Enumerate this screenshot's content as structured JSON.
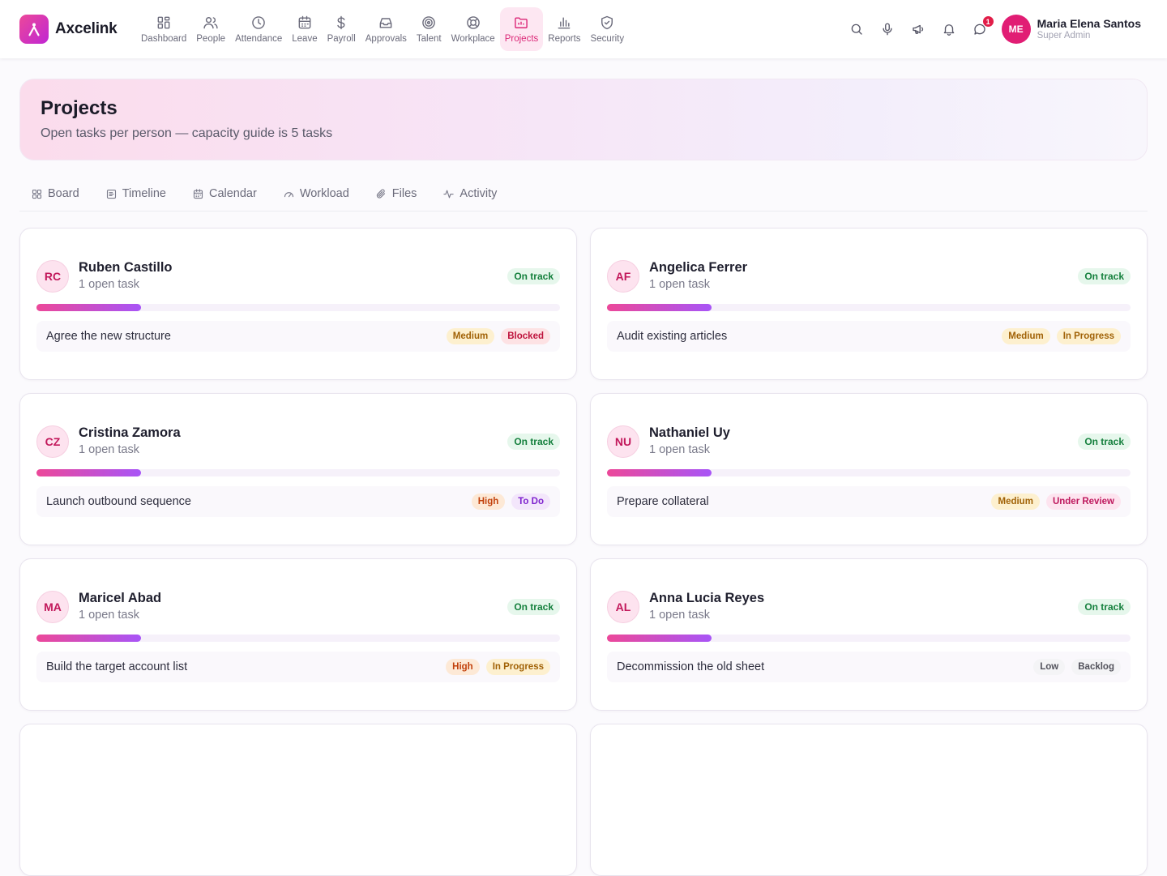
{
  "app": {
    "name": "Axcelink"
  },
  "nav": [
    {
      "label": "Dashboard",
      "icon": "grid-icon",
      "active": false
    },
    {
      "label": "People",
      "icon": "users-icon",
      "active": false
    },
    {
      "label": "Attendance",
      "icon": "clock-icon",
      "active": false
    },
    {
      "label": "Leave",
      "icon": "calendar-icon",
      "active": false
    },
    {
      "label": "Payroll",
      "icon": "dollar-icon",
      "active": false
    },
    {
      "label": "Approvals",
      "icon": "inbox-icon",
      "active": false
    },
    {
      "label": "Talent",
      "icon": "target-icon",
      "active": false
    },
    {
      "label": "Workplace",
      "icon": "lifebuoy-icon",
      "active": false
    },
    {
      "label": "Projects",
      "icon": "folder-icon",
      "active": true
    },
    {
      "label": "Reports",
      "icon": "bar-chart-icon",
      "active": false
    },
    {
      "label": "Security",
      "icon": "shield-icon",
      "active": false
    }
  ],
  "header_tools": {
    "message_count": "1"
  },
  "user": {
    "initials": "ME",
    "name": "Maria Elena Santos",
    "role": "Super Admin"
  },
  "hero": {
    "title": "Projects",
    "subtitle": "Open tasks per person — capacity guide is 5 tasks"
  },
  "tabs": [
    {
      "label": "Board",
      "icon": "board-icon"
    },
    {
      "label": "Timeline",
      "icon": "timeline-icon"
    },
    {
      "label": "Calendar",
      "icon": "calendar-icon"
    },
    {
      "label": "Workload",
      "icon": "gauge-icon"
    },
    {
      "label": "Files",
      "icon": "paperclip-icon"
    },
    {
      "label": "Activity",
      "icon": "activity-icon"
    }
  ],
  "colors": {
    "accent": "#db2777",
    "on_track_bg": "#e6f7ec",
    "on_track_fg": "#15803d"
  },
  "cards": [
    {
      "initials": "RC",
      "name": "Ruben Castillo",
      "count": "1 open task",
      "status": "On track",
      "load": 0.2,
      "task": "Agree the new structure",
      "priority": "Medium",
      "state": "Blocked"
    },
    {
      "initials": "AF",
      "name": "Angelica Ferrer",
      "count": "1 open task",
      "status": "On track",
      "load": 0.2,
      "task": "Audit existing articles",
      "priority": "Medium",
      "state": "In Progress"
    },
    {
      "initials": "CZ",
      "name": "Cristina Zamora",
      "count": "1 open task",
      "status": "On track",
      "load": 0.2,
      "task": "Launch outbound sequence",
      "priority": "High",
      "state": "To Do"
    },
    {
      "initials": "NU",
      "name": "Nathaniel Uy",
      "count": "1 open task",
      "status": "On track",
      "load": 0.2,
      "task": "Prepare collateral",
      "priority": "Medium",
      "state": "Under Review"
    },
    {
      "initials": "MA",
      "name": "Maricel Abad",
      "count": "1 open task",
      "status": "On track",
      "load": 0.2,
      "task": "Build the target account list",
      "priority": "High",
      "state": "In Progress"
    },
    {
      "initials": "AL",
      "name": "Anna Lucia Reyes",
      "count": "1 open task",
      "status": "On track",
      "load": 0.2,
      "task": "Decommission the old sheet",
      "priority": "Low",
      "state": "Backlog"
    }
  ],
  "chip_styles": {
    "Medium": {
      "bg": "#fdf0cf",
      "fg": "#a16207"
    },
    "High": {
      "bg": "#fde9d6",
      "fg": "#c2410c"
    },
    "Low": {
      "bg": "#f4f4f6",
      "fg": "#52525b"
    },
    "Blocked": {
      "bg": "#fde2e4",
      "fg": "#be123c"
    },
    "In Progress": {
      "bg": "#fdf0cf",
      "fg": "#a16207"
    },
    "To Do": {
      "bg": "#f3e6fb",
      "fg": "#7e22ce"
    },
    "Under Review": {
      "bg": "#fde4ef",
      "fg": "#be185d"
    },
    "Backlog": {
      "bg": "#f4f4f6",
      "fg": "#52525b"
    }
  }
}
